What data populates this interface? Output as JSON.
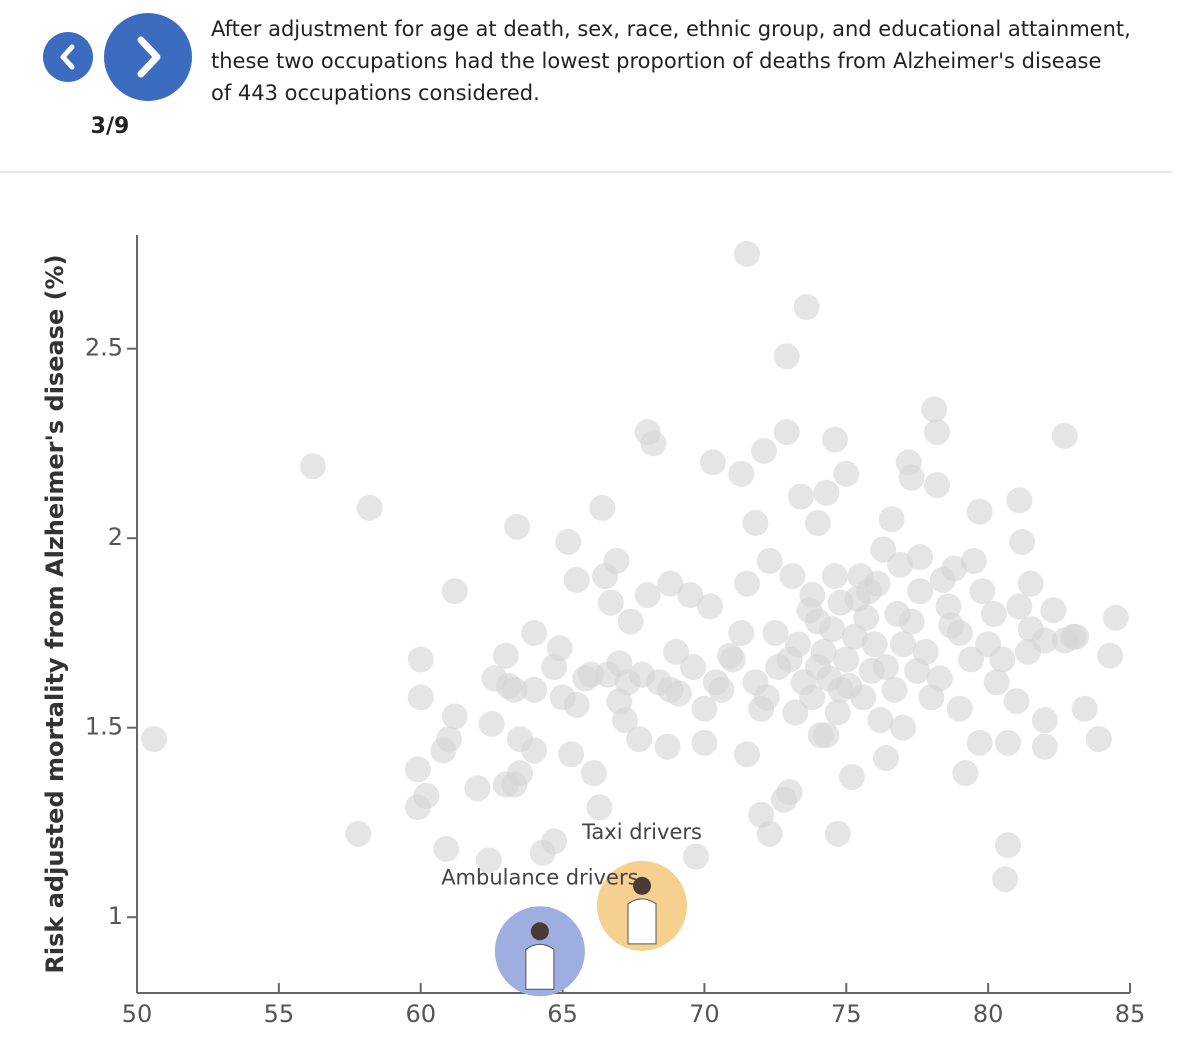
{
  "nav": {
    "page": "3/9"
  },
  "header": {
    "lines": [
      "After adjustment for age at death, sex, race, ethnic group, and educational attainment,",
      "these two occupations had the lowest proportion of deaths from Alzheimer's disease",
      "of 443 occupations considered."
    ]
  },
  "chart_data": {
    "type": "scatter",
    "y_label": "Risk adjusted mortality from Alzheimer's disease (%)",
    "xlim": [
      50,
      85
    ],
    "xticks": [
      50,
      55,
      60,
      65,
      70,
      75,
      80,
      85
    ],
    "ylim": [
      0.8,
      2.8
    ],
    "yticks": [
      1,
      1.5,
      2,
      2.5
    ],
    "series": [
      {
        "color": "#d4d4d4",
        "x": [
          50.6,
          56.2,
          58.2,
          57.8,
          59.9,
          60,
          60,
          59.9,
          60.2,
          60.9,
          60.8,
          61,
          61.2,
          61.2,
          62,
          62.4,
          62.5,
          62.6,
          63,
          63,
          63.1,
          63.3,
          63.3,
          63.4,
          63.5,
          63.5,
          64,
          64,
          64.3,
          64,
          64.7,
          64.7,
          64.9,
          65,
          65.2,
          65.3,
          65.5,
          65.5,
          66,
          66.1,
          66.3,
          66.4,
          66.5,
          66.7,
          66.9,
          67,
          67,
          67.2,
          67.4,
          67.7,
          68,
          68,
          68.2,
          68.4,
          68.7,
          68.8,
          69,
          69.1,
          69.5,
          69.7,
          70,
          70,
          70.2,
          70.3,
          70.6,
          70.9,
          71.3,
          71.3,
          71.5,
          71.5,
          71.5,
          71.8,
          71.8,
          72,
          72,
          72.1,
          72.3,
          72.3,
          72.6,
          72.8,
          72.9,
          72.9,
          73,
          73.1,
          73.3,
          73.4,
          73.6,
          73.7,
          73.8,
          74,
          74,
          74.3,
          74.3,
          74.5,
          74.6,
          74.7,
          74.7,
          74.8,
          75,
          75,
          75.1,
          75.2,
          75.5,
          75.7,
          75.9,
          76.2,
          76.3,
          76.4,
          76.6,
          76.8,
          77,
          77,
          77.2,
          77.3,
          77.5,
          77.6,
          78,
          78.1,
          78.2,
          78.2,
          78.4,
          78.7,
          79.2,
          79,
          79.5,
          79.7,
          79.7,
          80,
          80.2,
          80.3,
          80.6,
          80.7,
          80.7,
          81,
          81.1,
          81.1,
          81.2,
          81.5,
          81.5,
          82,
          82,
          82,
          82.3,
          82.7,
          82.7,
          83.1,
          83.4,
          83.9,
          84.3,
          84.5,
          83,
          72.5,
          73,
          73.5,
          73.8,
          74,
          74.2,
          74.4,
          74.6,
          74.8,
          75.3,
          75.6,
          75.8,
          76,
          76.4,
          76.7,
          77.3,
          77.8,
          78.3,
          78.6,
          79,
          79.4,
          71,
          70.4,
          69.6,
          68.8,
          67.8,
          67.3,
          66.6,
          65.8,
          72.2,
          73.2,
          74.1,
          75.4,
          76.9,
          77.6,
          78.8,
          79.8,
          80.5,
          81.4,
          76.1
        ],
        "values": [
          1.47,
          2.19,
          2.08,
          1.22,
          1.39,
          1.68,
          1.58,
          1.29,
          1.32,
          1.18,
          1.44,
          1.47,
          1.86,
          1.53,
          1.34,
          1.15,
          1.51,
          1.63,
          1.69,
          1.35,
          1.61,
          1.6,
          1.35,
          2.03,
          1.47,
          1.38,
          1.6,
          1.44,
          1.17,
          1.75,
          1.66,
          1.2,
          1.71,
          1.58,
          1.99,
          1.43,
          1.89,
          1.56,
          1.64,
          1.38,
          1.29,
          2.08,
          1.9,
          1.83,
          1.94,
          1.67,
          1.57,
          1.52,
          1.78,
          1.47,
          2.28,
          1.85,
          2.25,
          1.62,
          1.45,
          1.88,
          1.7,
          1.59,
          1.85,
          1.16,
          1.55,
          1.46,
          1.82,
          2.2,
          1.6,
          1.69,
          1.75,
          2.17,
          1.88,
          1.43,
          2.75,
          1.62,
          2.04,
          1.55,
          1.27,
          2.23,
          1.94,
          1.22,
          1.66,
          1.31,
          2.28,
          2.48,
          1.33,
          1.9,
          1.72,
          2.11,
          2.61,
          1.81,
          1.58,
          2.04,
          1.66,
          2.12,
          1.48,
          1.76,
          2.26,
          1.54,
          1.22,
          1.83,
          2.17,
          1.68,
          1.61,
          1.37,
          1.9,
          1.79,
          1.65,
          1.52,
          1.97,
          1.42,
          2.05,
          1.8,
          1.72,
          1.5,
          2.2,
          2.16,
          1.65,
          1.86,
          1.58,
          2.34,
          2.28,
          2.14,
          1.89,
          1.77,
          1.38,
          1.55,
          1.94,
          1.46,
          2.07,
          1.72,
          1.8,
          1.62,
          1.1,
          1.46,
          1.19,
          1.57,
          2.1,
          1.82,
          1.99,
          1.76,
          1.88,
          1.52,
          1.45,
          1.73,
          1.81,
          1.73,
          2.27,
          1.74,
          1.55,
          1.47,
          1.69,
          1.79,
          1.74,
          1.75,
          1.68,
          1.62,
          1.85,
          1.78,
          1.7,
          1.63,
          1.9,
          1.6,
          1.74,
          1.58,
          1.86,
          1.72,
          1.66,
          1.6,
          1.78,
          1.7,
          1.63,
          1.82,
          1.75,
          1.68,
          1.68,
          1.62,
          1.66,
          1.6,
          1.64,
          1.62,
          1.64,
          1.63,
          1.58,
          1.54,
          1.48,
          1.84,
          1.93,
          1.95,
          1.92,
          1.86,
          1.68,
          1.7,
          1.88
        ]
      }
    ],
    "highlights": [
      {
        "label": "Taxi drivers",
        "x": 67.8,
        "y": 1.03,
        "color": "#f6d08e"
      },
      {
        "label": "Ambulance drivers",
        "x": 64.2,
        "y": 0.91,
        "color": "#9eaee0"
      }
    ]
  }
}
